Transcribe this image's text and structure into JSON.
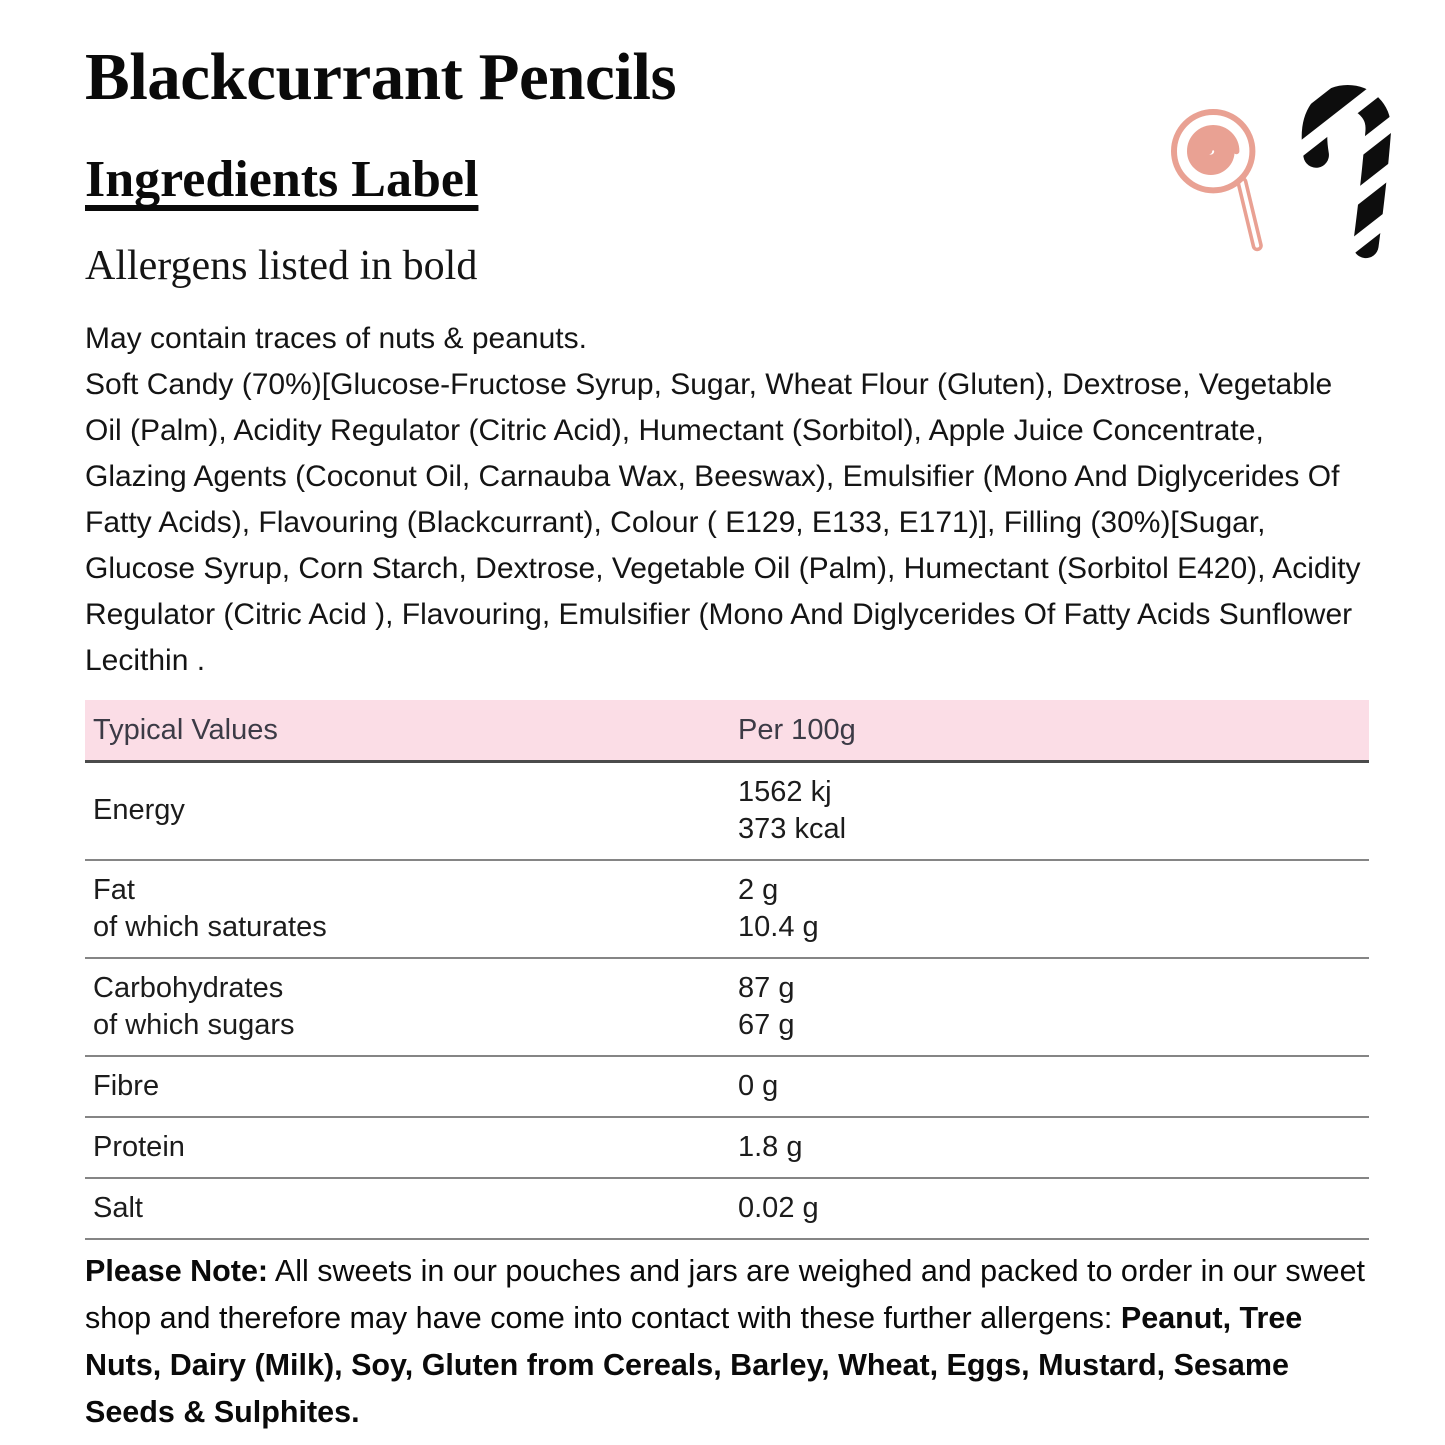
{
  "header": {
    "title": "Blackcurrant Pencils",
    "subtitle": "Ingredients Label",
    "allergen_note": "Allergens listed in bold"
  },
  "decor": {
    "icons": [
      "lollipop-icon",
      "candy-cane-icon"
    ]
  },
  "ingredients": {
    "may_contain": "May contain traces of nuts & peanuts.",
    "body": "Soft Candy (70%)[Glucose-Fructose Syrup, Sugar, Wheat Flour (Gluten), Dextrose, Vegetable Oil (Palm), Acidity Regulator (Citric Acid), Humectant (Sorbitol), Apple Juice Concentrate, Glazing Agents (Coconut Oil, Carnauba Wax, Beeswax), Emulsifier (Mono And Diglycerides Of Fatty Acids), Flavouring (Blackcurrant), Colour ( E129, E133, E171)], Filling (30%)[Sugar, Glucose Syrup, Corn Starch, Dextrose, Vegetable Oil (Palm), Humectant (Sorbitol E420), Acidity Regulator (Citric Acid ), Flavouring, Emulsifier (Mono And Diglycerides Of Fatty Acids Sunflower Lecithin ."
  },
  "nutrition_table": {
    "columns": [
      "Typical Values",
      "Per 100g"
    ],
    "rows": [
      {
        "label_lines": [
          "Energy"
        ],
        "value_lines": [
          "1562 kj",
          "373 kcal"
        ]
      },
      {
        "label_lines": [
          "Fat",
          "of which saturates"
        ],
        "value_lines": [
          "2 g",
          "10.4 g"
        ]
      },
      {
        "label_lines": [
          "Carbohydrates",
          "of which sugars"
        ],
        "value_lines": [
          "87 g",
          "67 g"
        ]
      },
      {
        "label_lines": [
          "Fibre"
        ],
        "value_lines": [
          "0 g"
        ]
      },
      {
        "label_lines": [
          "Protein"
        ],
        "value_lines": [
          "1.8 g"
        ]
      },
      {
        "label_lines": [
          "Salt"
        ],
        "value_lines": [
          "0.02 g"
        ]
      }
    ]
  },
  "footer_note": {
    "segments": [
      {
        "text": "Please Note:",
        "bold": true
      },
      {
        "text": " All sweets in our pouches and jars are weighed and packed to order in our sweet shop and therefore may have come into contact with these further allergens: ",
        "bold": false
      },
      {
        "text": "Peanut, Tree Nuts, Dairy (Milk), Soy, Gluten from Cereals, Barley, Wheat, Eggs, Mustard, Sesame Seeds & Sulphites.",
        "bold": true
      }
    ]
  },
  "colors": {
    "table_header_band_pink": "#fbdde6",
    "lollipop_salmon": "#e9a193",
    "table_header_text": "#3c3b46",
    "candy_cane_black": "#0d0d0d"
  }
}
